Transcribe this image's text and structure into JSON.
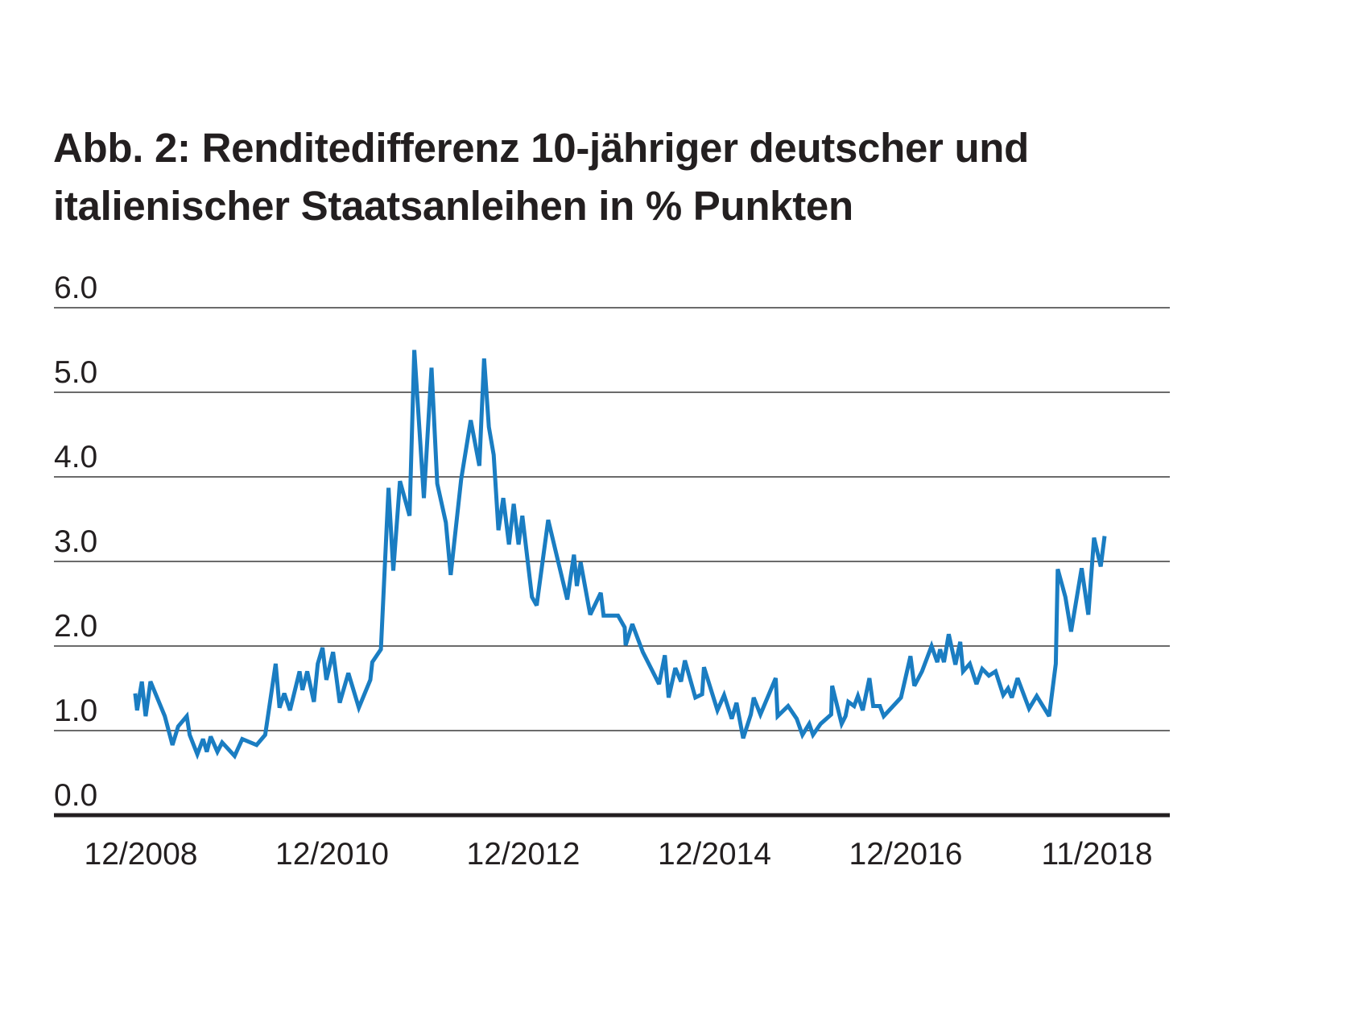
{
  "chart_data": {
    "type": "line",
    "title_line1": "Abb. 2: Renditedifferenz 10-jähriger deutscher und",
    "title_line2": "italienischer Staatsanleihen in % Punkten",
    "xlabel": "",
    "ylabel": "",
    "ylim": [
      0,
      6
    ],
    "yticks": [
      "0.0",
      "1.0",
      "2.0",
      "3.0",
      "4.0",
      "5.0",
      "6.0"
    ],
    "xticks": [
      {
        "label": "12/2008",
        "year": 2008.92
      },
      {
        "label": "12/2010",
        "year": 2010.92
      },
      {
        "label": "12/2012",
        "year": 2012.92
      },
      {
        "label": "12/2014",
        "year": 2014.92
      },
      {
        "label": "12/2016",
        "year": 2016.92
      },
      {
        "label": "11/2018",
        "year": 2018.92
      }
    ],
    "grid": true,
    "line_color": "#1a7dc2",
    "series": [
      {
        "name": "Renditedifferenz",
        "x": [
          2008.86,
          2008.88,
          2008.93,
          2008.97,
          2009.02,
          2009.17,
          2009.25,
          2009.31,
          2009.4,
          2009.43,
          2009.51,
          2009.57,
          2009.61,
          2009.65,
          2009.72,
          2009.77,
          2009.9,
          2009.98,
          2010.13,
          2010.22,
          2010.33,
          2010.37,
          2010.42,
          2010.48,
          2010.58,
          2010.61,
          2010.66,
          2010.73,
          2010.77,
          2010.82,
          2010.86,
          2010.93,
          2011.0,
          2011.09,
          2011.2,
          2011.32,
          2011.34,
          2011.43,
          2011.51,
          2011.56,
          2011.63,
          2011.73,
          2011.78,
          2011.88,
          2011.96,
          2012.02,
          2012.11,
          2012.16,
          2012.27,
          2012.37,
          2012.46,
          2012.51,
          2012.56,
          2012.61,
          2012.66,
          2012.71,
          2012.77,
          2012.82,
          2012.87,
          2012.91,
          2013.01,
          2013.06,
          2013.18,
          2013.38,
          2013.45,
          2013.48,
          2013.52,
          2013.62,
          2013.73,
          2013.76,
          2013.91,
          2013.98,
          2013.99,
          2014.06,
          2014.17,
          2014.34,
          2014.4,
          2014.44,
          2014.51,
          2014.57,
          2014.61,
          2014.72,
          2014.79,
          2014.81,
          2014.95,
          2015.02,
          2015.1,
          2015.15,
          2015.22,
          2015.3,
          2015.33,
          2015.4,
          2015.56,
          2015.58,
          2015.69,
          2015.78,
          2015.84,
          2015.91,
          2015.95,
          2016.03,
          2016.14,
          2016.15,
          2016.25,
          2016.29,
          2016.32,
          2016.38,
          2016.42,
          2016.47,
          2016.54,
          2016.58,
          2016.65,
          2016.69,
          2016.87,
          2016.97,
          2017.01,
          2017.09,
          2017.19,
          2017.25,
          2017.28,
          2017.32,
          2017.37,
          2017.44,
          2017.49,
          2017.52,
          2017.59,
          2017.66,
          2017.72,
          2017.79,
          2017.86,
          2017.94,
          2017.99,
          2018.03,
          2018.09,
          2018.21,
          2018.29,
          2018.42,
          2018.49,
          2018.51,
          2018.59,
          2018.65,
          2018.76,
          2018.83,
          2018.89,
          2018.96,
          2019.0
        ],
        "values": [
          1.44,
          1.24,
          1.58,
          1.17,
          1.58,
          1.17,
          0.83,
          1.05,
          1.17,
          0.95,
          0.72,
          0.9,
          0.75,
          0.93,
          0.75,
          0.86,
          0.7,
          0.9,
          0.83,
          0.95,
          1.79,
          1.27,
          1.44,
          1.24,
          1.7,
          1.48,
          1.7,
          1.34,
          1.79,
          1.98,
          1.6,
          1.93,
          1.33,
          1.68,
          1.27,
          1.6,
          1.81,
          1.96,
          3.87,
          2.89,
          3.95,
          3.54,
          5.5,
          3.75,
          5.29,
          3.92,
          3.46,
          2.84,
          3.97,
          4.67,
          4.13,
          5.4,
          4.59,
          4.26,
          3.37,
          3.75,
          3.2,
          3.68,
          3.2,
          3.54,
          2.58,
          2.48,
          3.49,
          2.55,
          3.08,
          2.71,
          2.99,
          2.37,
          2.63,
          2.36,
          2.36,
          2.22,
          2.01,
          2.26,
          1.93,
          1.55,
          1.89,
          1.39,
          1.74,
          1.58,
          1.83,
          1.39,
          1.43,
          1.75,
          1.24,
          1.42,
          1.14,
          1.33,
          0.91,
          1.19,
          1.39,
          1.19,
          1.62,
          1.17,
          1.29,
          1.14,
          0.95,
          1.08,
          0.95,
          1.08,
          1.19,
          1.53,
          1.08,
          1.17,
          1.34,
          1.29,
          1.41,
          1.24,
          1.62,
          1.29,
          1.29,
          1.17,
          1.39,
          1.88,
          1.53,
          1.7,
          2.0,
          1.81,
          1.96,
          1.81,
          2.14,
          1.78,
          2.05,
          1.7,
          1.79,
          1.55,
          1.73,
          1.65,
          1.7,
          1.42,
          1.5,
          1.39,
          1.62,
          1.26,
          1.41,
          1.17,
          1.79,
          2.91,
          2.58,
          2.17,
          2.92,
          2.37,
          3.28,
          2.94,
          3.3
        ]
      }
    ]
  }
}
